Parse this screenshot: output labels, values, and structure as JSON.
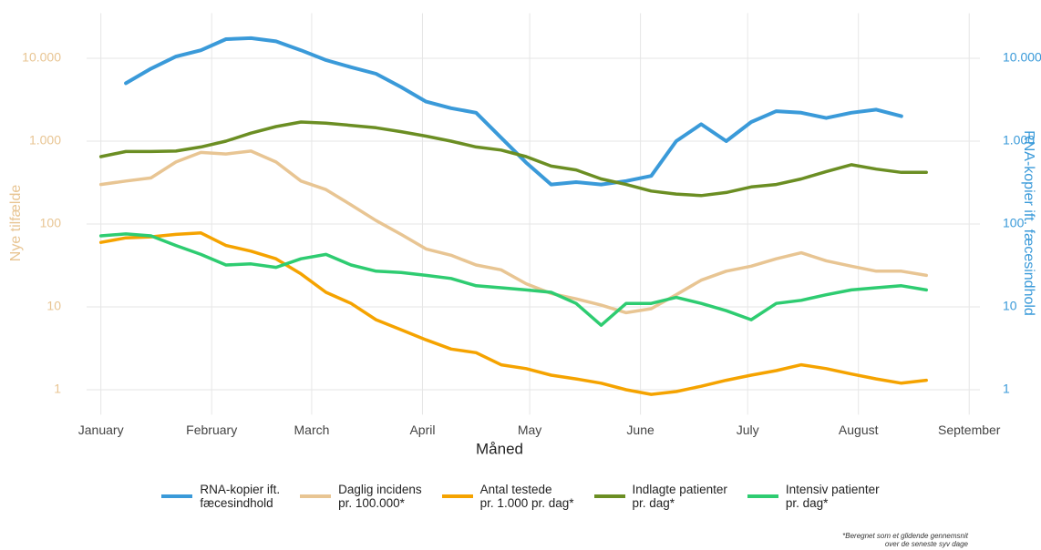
{
  "chart_data": {
    "type": "line",
    "xlabel": "Måned",
    "ylabel": "Nye tilfælde",
    "y2label": "RNA-kopier ift. fæcesindhold",
    "log_y": true,
    "grid": true,
    "legend": "bottom",
    "footnote": "*Beregnet som et glidende gennemsnit\nover de seneste syv dage",
    "x": [
      1,
      8,
      15,
      22,
      29,
      36,
      43,
      50,
      57,
      64,
      71,
      78,
      85,
      92,
      99,
      106,
      113,
      120,
      127,
      134,
      141,
      148,
      155,
      162,
      169,
      176,
      183,
      190,
      197,
      204,
      211,
      218,
      225,
      232
    ],
    "xlim": [
      -3,
      247
    ],
    "xticks": [
      {
        "value": 1,
        "label": "January"
      },
      {
        "value": 32,
        "label": "February"
      },
      {
        "value": 60,
        "label": "March"
      },
      {
        "value": 91,
        "label": "April"
      },
      {
        "value": 121,
        "label": "May"
      },
      {
        "value": 152,
        "label": "June"
      },
      {
        "value": 182,
        "label": "July"
      },
      {
        "value": 213,
        "label": "August"
      },
      {
        "value": 244,
        "label": "September"
      }
    ],
    "ylim": [
      0.5,
      35000
    ],
    "yticks": [
      1,
      10,
      100,
      {
        "value": 1000,
        "label": "1.000"
      },
      {
        "value": 10000,
        "label": "10.000"
      }
    ],
    "y2lim": [
      0.5,
      35000
    ],
    "y2ticks": [
      1,
      10,
      100,
      {
        "value": 1000,
        "label": "1.000"
      },
      {
        "value": 10000,
        "label": "10.000"
      }
    ],
    "series": [
      {
        "name": "RNA-kopier ift.\nfæcesindhold",
        "color": "#3a9ad9",
        "axis": "y2",
        "values": [
          null,
          5000,
          7500,
          10500,
          12500,
          17000,
          17500,
          16000,
          12500,
          9500,
          7800,
          6500,
          4500,
          3000,
          2500,
          2200,
          1100,
          550,
          300,
          320,
          300,
          330,
          380,
          1000,
          1600,
          1000,
          1700,
          2300,
          2200,
          1900,
          2200,
          2400,
          2000,
          null
        ]
      },
      {
        "name": "Daglig incidens\npr. 100.000*",
        "color": "#e8c593",
        "values": [
          300,
          330,
          360,
          560,
          730,
          700,
          760,
          560,
          330,
          260,
          170,
          110,
          75,
          50,
          42,
          32,
          28,
          19,
          14.5,
          12.5,
          10.5,
          8.5,
          9.5,
          14,
          21,
          27,
          31,
          38,
          45,
          36,
          31,
          27,
          27,
          24
        ]
      },
      {
        "name": "Antal testede\npr. 1.000 pr. dag*",
        "color": "#f5a300",
        "values": [
          60,
          68,
          70,
          75,
          78,
          55,
          47,
          38,
          25,
          15,
          11,
          7,
          5.3,
          4,
          3.1,
          2.8,
          2.0,
          1.8,
          1.5,
          1.35,
          1.2,
          1.0,
          0.88,
          0.95,
          1.1,
          1.3,
          1.5,
          1.7,
          2.0,
          1.8,
          1.55,
          1.35,
          1.2,
          1.3
        ]
      },
      {
        "name": "Indlagte patienter\npr. dag*",
        "color": "#6b8e23",
        "values": [
          650,
          750,
          750,
          760,
          850,
          1000,
          1250,
          1500,
          1700,
          1650,
          1550,
          1450,
          1300,
          1150,
          1000,
          850,
          780,
          650,
          500,
          450,
          350,
          300,
          250,
          230,
          220,
          240,
          280,
          300,
          350,
          430,
          520,
          460,
          420,
          420
        ]
      },
      {
        "name": "Intensiv patienter\npr. dag*",
        "color": "#2ecc71",
        "values": [
          72,
          76,
          72,
          55,
          43,
          32,
          33,
          30,
          38,
          43,
          32,
          27,
          26,
          24,
          22,
          18,
          17,
          16,
          15,
          11,
          6,
          11,
          11,
          13,
          11,
          9,
          7,
          11,
          12,
          14,
          16,
          17,
          18,
          16
        ]
      }
    ]
  }
}
